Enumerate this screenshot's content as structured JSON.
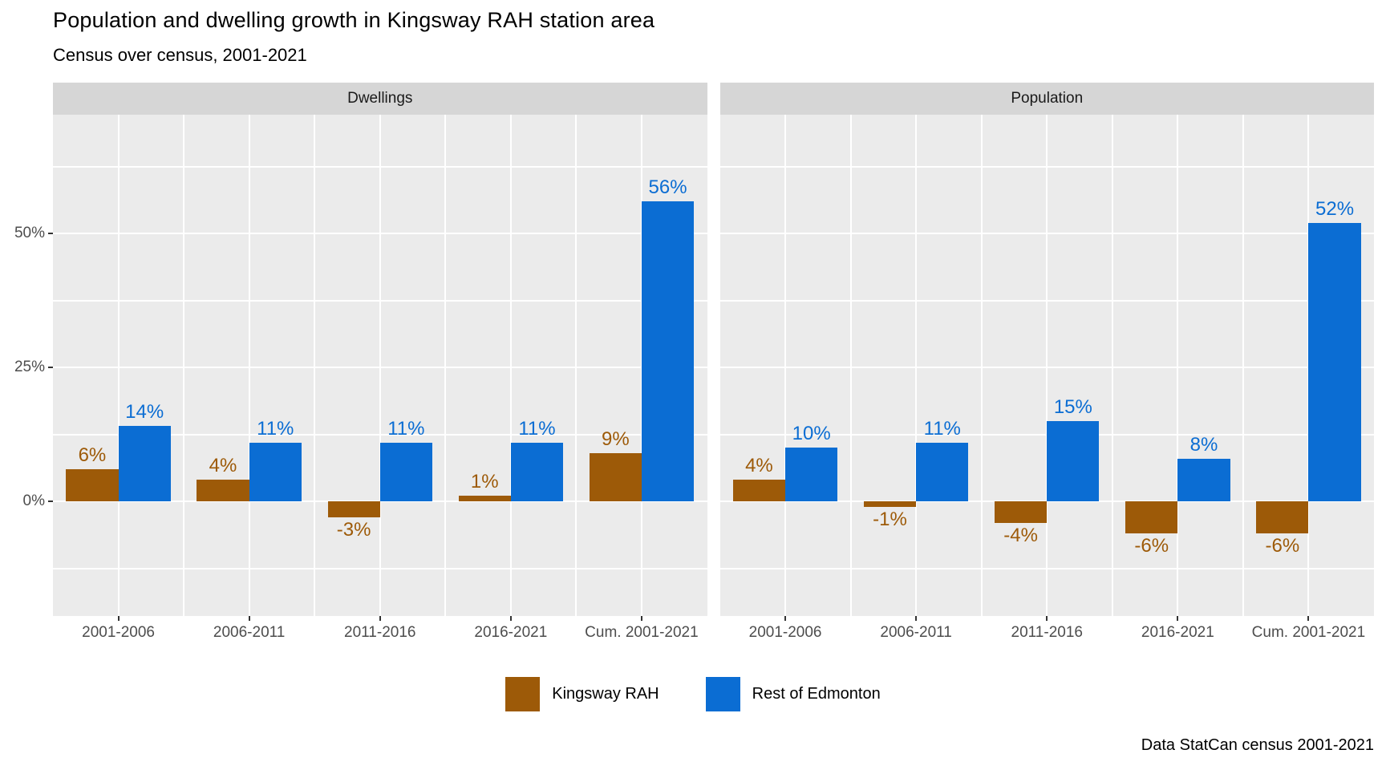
{
  "title": "Population and dwelling growth in Kingsway RAH station area",
  "subtitle": "Census over census, 2001-2021",
  "caption": "Data StatCan census 2001-2021",
  "legend": {
    "items": [
      {
        "label": "Kingsway RAH",
        "color": "#9D5A08"
      },
      {
        "label": "Rest of Edmonton",
        "color": "#0B6DD3"
      }
    ]
  },
  "y_axis": {
    "ticks": [
      {
        "label": "50%",
        "value": 50
      },
      {
        "label": "25%",
        "value": 25
      },
      {
        "label": "0%",
        "value": 0
      }
    ]
  },
  "chart_data": {
    "type": "bar",
    "title": "Population and dwelling growth in Kingsway RAH station area",
    "subtitle": "Census over census, 2001-2021",
    "caption": "Data StatCan census 2001-2021",
    "categories": [
      "2001-2006",
      "2006-2011",
      "2011-2016",
      "2016-2021",
      "Cum. 2001-2021"
    ],
    "facets": [
      {
        "label": "Dwellings",
        "series": [
          {
            "name": "Kingsway RAH",
            "color": "#9D5A08",
            "values": [
              6,
              4,
              -3,
              1,
              9
            ]
          },
          {
            "name": "Rest of Edmonton",
            "color": "#0B6DD3",
            "values": [
              14,
              11,
              11,
              11,
              56
            ]
          }
        ]
      },
      {
        "label": "Population",
        "series": [
          {
            "name": "Kingsway RAH",
            "color": "#9D5A08",
            "values": [
              4,
              -1,
              -4,
              -6,
              -6
            ]
          },
          {
            "name": "Rest of Edmonton",
            "color": "#0B6DD3",
            "values": [
              10,
              11,
              15,
              8,
              52
            ]
          }
        ]
      }
    ],
    "value_suffix": "%",
    "ylabel": "",
    "xlabel": "",
    "ylim": [
      -21.4,
      72.2
    ],
    "y_major_ticks": [
      0,
      25,
      50
    ],
    "y_minor_ticks": [
      -12.5,
      12.5,
      37.5,
      62.5
    ],
    "grid": true,
    "legend_position": "bottom",
    "panel_bg": "#EBEBEB",
    "strip_bg": "#D6D6D6",
    "grid_color": "#FFFFFF",
    "axis_text_color": "#4D4D4D"
  }
}
